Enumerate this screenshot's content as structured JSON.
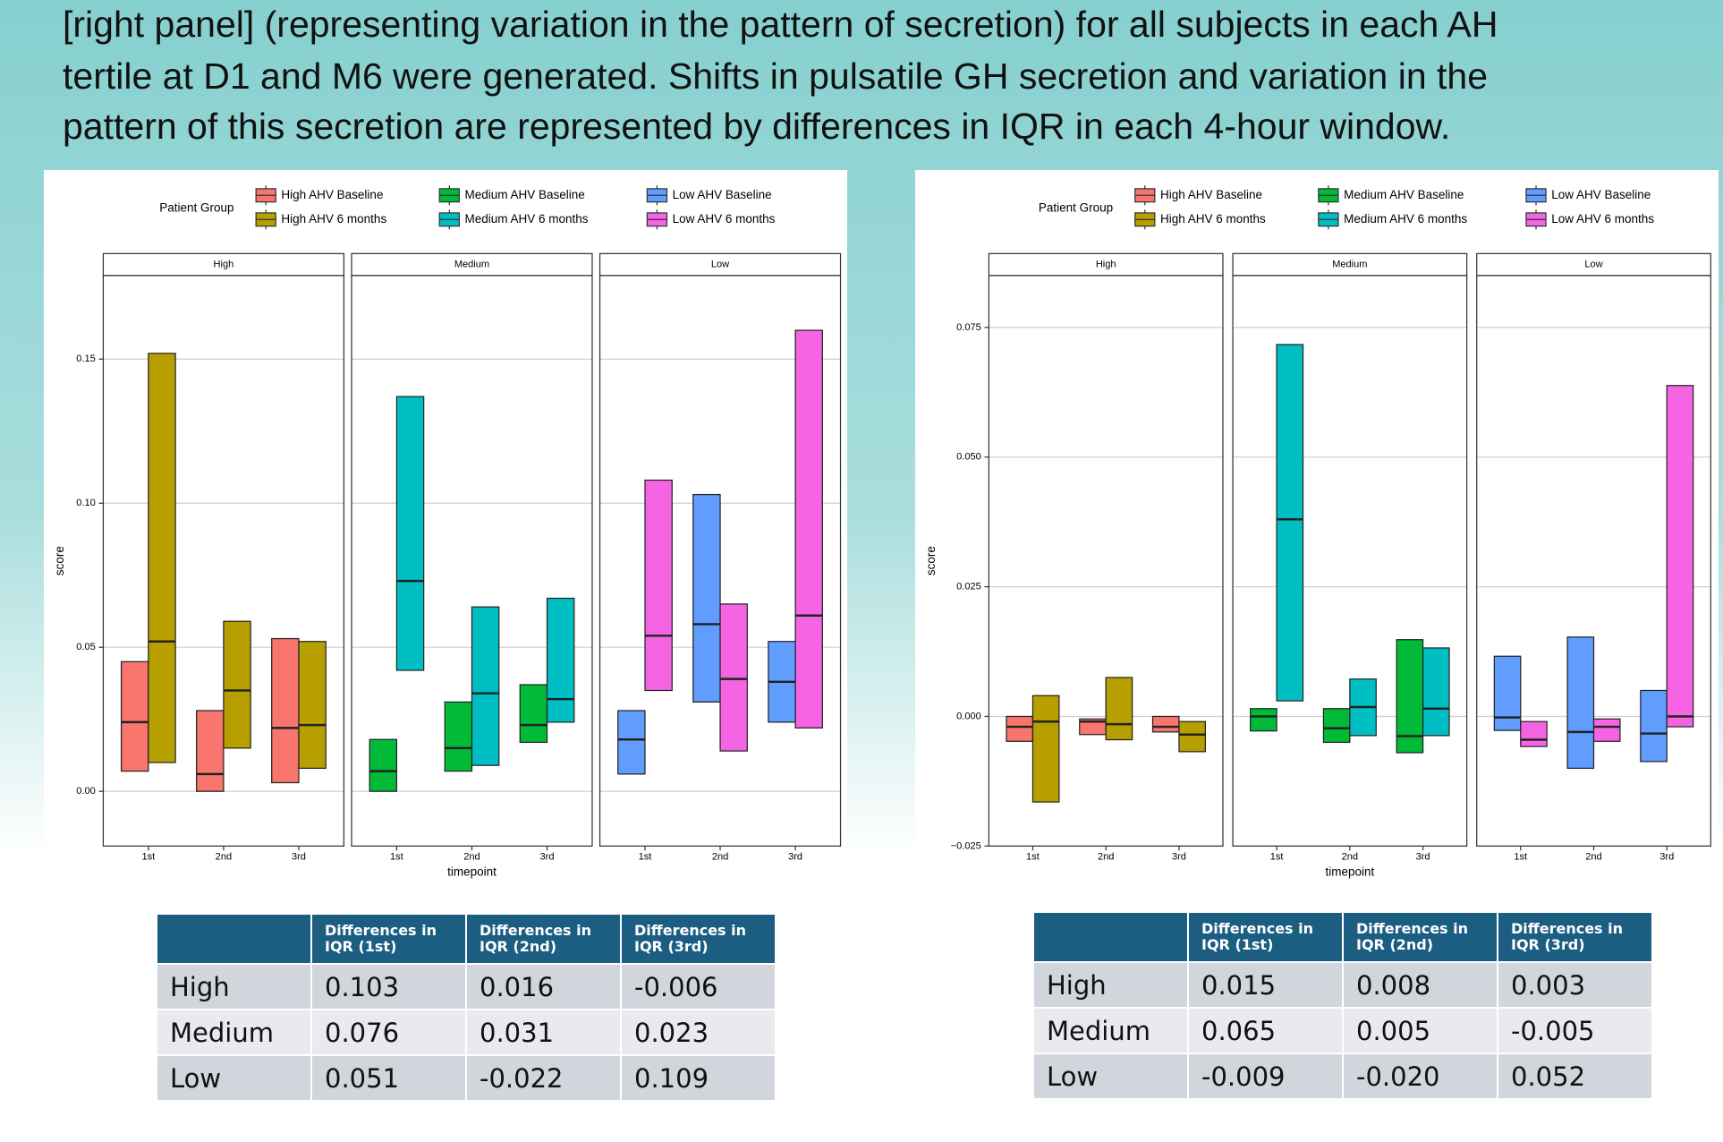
{
  "text_lines": [
    "[right panel] (representing variation in the pattern of secretion) for all subjects in each AH",
    "tertile at D1 and M6 were generated. Shifts in pulsatile GH secretion and variation in the",
    "pattern of this secretion are represented by differences in IQR in each 4-hour window."
  ],
  "chart_data": [
    {
      "type": "box",
      "legend_title": "Patient Group",
      "xlabel": "timepoint",
      "ylabel": "score",
      "facets": [
        "High",
        "Medium",
        "Low"
      ],
      "categories": [
        "1st",
        "2nd",
        "3rd"
      ],
      "ylim": [
        -0.019,
        0.179
      ],
      "yticks": [
        {
          "value": 0,
          "label": "0.00"
        },
        {
          "value": 0.05,
          "label": "0.05"
        },
        {
          "value": 0.1,
          "label": "0.10"
        },
        {
          "value": 0.15,
          "label": "0.15"
        }
      ],
      "grid": true,
      "series": [
        {
          "name": "High AHV Baseline",
          "color": "#F8766D",
          "q1": [
            0.007,
            0.0,
            0.003
          ],
          "median": [
            0.024,
            0.006,
            0.022
          ],
          "q3": [
            0.045,
            0.028,
            0.053
          ]
        },
        {
          "name": "High AHV 6 months",
          "color": "#B79F00",
          "q1": [
            0.01,
            0.015,
            0.008
          ],
          "median": [
            0.052,
            0.035,
            0.023
          ],
          "q3": [
            0.152,
            0.059,
            0.052
          ]
        },
        {
          "name": "Medium AHV Baseline",
          "color": "#00BA38",
          "q1": [
            0.0,
            0.007,
            0.017
          ],
          "median": [
            0.007,
            0.015,
            0.023
          ],
          "q3": [
            0.018,
            0.031,
            0.037
          ]
        },
        {
          "name": "Medium AHV 6 months",
          "color": "#00BFC4",
          "q1": [
            0.042,
            0.009,
            0.024
          ],
          "median": [
            0.073,
            0.034,
            0.032
          ],
          "q3": [
            0.137,
            0.064,
            0.067
          ]
        },
        {
          "name": "Low AHV Baseline",
          "color": "#619CFF",
          "q1": [
            0.006,
            0.031,
            0.024
          ],
          "median": [
            0.018,
            0.058,
            0.038
          ],
          "q3": [
            0.028,
            0.103,
            0.052
          ]
        },
        {
          "name": "Low AHV 6 months",
          "color": "#F564E3",
          "q1": [
            0.035,
            0.014,
            0.022
          ],
          "median": [
            0.054,
            0.039,
            0.061
          ],
          "q3": [
            0.108,
            0.065,
            0.16
          ]
        }
      ]
    },
    {
      "type": "box",
      "legend_title": "Patient Group",
      "xlabel": "timepoint",
      "ylabel": "score",
      "facets": [
        "High",
        "Medium",
        "Low"
      ],
      "categories": [
        "1st",
        "2nd",
        "3rd"
      ],
      "ylim": [
        -0.025,
        0.085
      ],
      "yticks": [
        {
          "value": -0.025,
          "label": "−0.025"
        },
        {
          "value": 0,
          "label": "0.000"
        },
        {
          "value": 0.025,
          "label": "0.025"
        },
        {
          "value": 0.05,
          "label": "0.050"
        },
        {
          "value": 0.075,
          "label": "0.075"
        }
      ],
      "grid": true,
      "series": [
        {
          "name": "High AHV Baseline",
          "color": "#F8766D",
          "q1": [
            -0.0048,
            -0.0035,
            -0.003
          ],
          "median": [
            -0.002,
            -0.001,
            -0.002
          ],
          "q3": [
            0.0,
            -0.0005,
            0.0
          ]
        },
        {
          "name": "High AHV 6 months",
          "color": "#B79F00",
          "q1": [
            -0.0165,
            -0.0045,
            -0.0068
          ],
          "median": [
            -0.001,
            -0.0015,
            -0.0035
          ],
          "q3": [
            0.004,
            0.0075,
            -0.001
          ]
        },
        {
          "name": "Medium AHV Baseline",
          "color": "#00BA38",
          "q1": [
            -0.0028,
            -0.005,
            -0.007
          ],
          "median": [
            0.0,
            -0.0023,
            -0.0038
          ],
          "q3": [
            0.0015,
            0.0015,
            0.0148
          ]
        },
        {
          "name": "Medium AHV 6 months",
          "color": "#00BFC4",
          "q1": [
            0.003,
            -0.0037,
            -0.0037
          ],
          "median": [
            0.038,
            0.0018,
            0.0015
          ],
          "q3": [
            0.0717,
            0.0072,
            0.0132
          ]
        },
        {
          "name": "Low AHV Baseline",
          "color": "#619CFF",
          "q1": [
            -0.0027,
            -0.01,
            -0.0087
          ],
          "median": [
            -0.0002,
            -0.003,
            -0.0033
          ],
          "q3": [
            0.0116,
            0.0153,
            0.005
          ]
        },
        {
          "name": "Low AHV 6 months",
          "color": "#F564E3",
          "q1": [
            -0.0058,
            -0.0048,
            -0.002
          ],
          "median": [
            -0.0045,
            -0.002,
            0.0
          ],
          "q3": [
            -0.001,
            -0.0005,
            0.0638
          ]
        }
      ]
    }
  ],
  "tables": [
    {
      "columns": [
        "Differences in IQR (1st)",
        "Differences in IQR (2nd)",
        "Differences in IQR (3rd)"
      ],
      "rows": [
        {
          "label": "High",
          "cells": [
            "0.103",
            "0.016",
            "-0.006"
          ]
        },
        {
          "label": "Medium",
          "cells": [
            "0.076",
            "0.031",
            "0.023"
          ]
        },
        {
          "label": "Low",
          "cells": [
            "0.051",
            "-0.022",
            "0.109"
          ]
        }
      ]
    },
    {
      "columns": [
        "Differences in IQR (1st)",
        "Differences in IQR (2nd)",
        "Differences in IQR (3rd)"
      ],
      "rows": [
        {
          "label": "High",
          "cells": [
            "0.015",
            "0.008",
            "0.003"
          ]
        },
        {
          "label": "Medium",
          "cells": [
            "0.065",
            "0.005",
            "-0.005"
          ]
        },
        {
          "label": "Low",
          "cells": [
            "-0.009",
            "-0.020",
            "0.052"
          ]
        }
      ]
    }
  ]
}
